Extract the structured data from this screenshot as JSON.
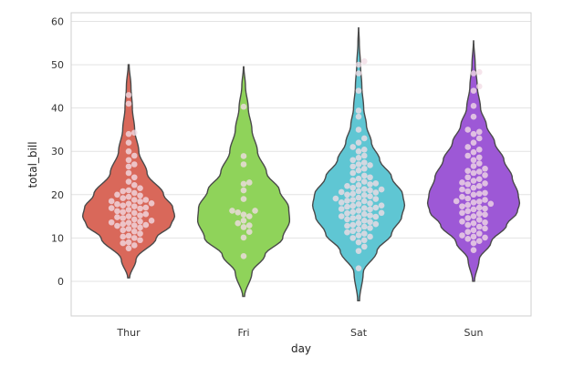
{
  "chart_data": {
    "type": "violin",
    "title": "",
    "xlabel": "day",
    "ylabel": "total_bill",
    "ylim": [
      -8,
      62
    ],
    "yticks": [
      0,
      10,
      20,
      30,
      40,
      50,
      60
    ],
    "grid": true,
    "categories": [
      "Thur",
      "Fri",
      "Sat",
      "Sun"
    ],
    "colors": {
      "Thur": "#d9685a",
      "Fri": "#8fd35a",
      "Sat": "#5fc6d3",
      "Sun": "#9d58d6",
      "points": "#f2dce6",
      "outline": "#4a4a4a"
    },
    "series": [
      {
        "category": "Thur",
        "density_range": [
          0.8,
          50
        ],
        "density_profile": [
          [
            0.8,
            0.02
          ],
          [
            5,
            0.16
          ],
          [
            10,
            0.6
          ],
          [
            13,
            0.92
          ],
          [
            15,
            1.0
          ],
          [
            17,
            0.96
          ],
          [
            20,
            0.76
          ],
          [
            25,
            0.4
          ],
          [
            30,
            0.22
          ],
          [
            35,
            0.13
          ],
          [
            40,
            0.08
          ],
          [
            45,
            0.05
          ],
          [
            50,
            0.01
          ]
        ],
        "points": [
          13,
          13.5,
          13.2,
          12.8,
          14,
          14.8,
          15,
          15.5,
          16.2,
          16.8,
          17,
          17.3,
          17.8,
          18,
          18.4,
          18.8,
          19.2,
          19.8,
          20,
          20.4,
          21,
          21.5,
          22.2,
          23,
          11,
          11.8,
          12.4,
          10.5,
          10,
          9.5,
          9,
          8.8,
          8.3,
          7.6,
          12.1,
          14.3,
          15.2,
          16,
          16.5,
          17.5,
          18.5,
          19.5,
          20.8,
          24,
          25,
          26.5,
          27,
          28,
          29,
          30,
          32,
          34,
          34.3,
          41,
          43,
          11.5,
          12.9,
          13.8,
          14.6,
          15.8,
          16.9,
          17.9,
          18.8,
          13.6,
          10.3
        ]
      },
      {
        "category": "Fri",
        "density_range": [
          -3.5,
          49.5
        ],
        "density_profile": [
          [
            -3.5,
            0.02
          ],
          [
            2,
            0.18
          ],
          [
            6,
            0.46
          ],
          [
            10,
            0.85
          ],
          [
            14,
            1.0
          ],
          [
            17,
            0.98
          ],
          [
            21,
            0.78
          ],
          [
            25,
            0.5
          ],
          [
            30,
            0.3
          ],
          [
            35,
            0.18
          ],
          [
            40,
            0.1
          ],
          [
            45,
            0.04
          ],
          [
            49.5,
            0.005
          ]
        ],
        "points": [
          5.8,
          10.1,
          11.4,
          12.5,
          12.9,
          13.4,
          14,
          15,
          15.4,
          15.9,
          16.3,
          16.3,
          19,
          21,
          22.5,
          22.8,
          27,
          28.9,
          40.3
        ]
      },
      {
        "category": "Sat",
        "density_range": [
          -4.5,
          58.5
        ],
        "density_profile": [
          [
            -4.5,
            0.02
          ],
          [
            2,
            0.1
          ],
          [
            7,
            0.4
          ],
          [
            11,
            0.72
          ],
          [
            15,
            0.94
          ],
          [
            17.5,
            1.0
          ],
          [
            20,
            0.96
          ],
          [
            24,
            0.72
          ],
          [
            28,
            0.46
          ],
          [
            32,
            0.28
          ],
          [
            36,
            0.17
          ],
          [
            40,
            0.11
          ],
          [
            45,
            0.07
          ],
          [
            50,
            0.04
          ],
          [
            55,
            0.015
          ],
          [
            58.5,
            0.003
          ]
        ],
        "points": [
          3,
          7,
          8,
          9,
          9.5,
          10,
          10.3,
          10.6,
          11,
          11.3,
          11.6,
          12,
          12.3,
          12.6,
          13,
          13.2,
          13.4,
          13.7,
          14,
          14.3,
          14.6,
          14.9,
          15,
          15.2,
          15.5,
          15.8,
          16,
          16.3,
          16.6,
          16.9,
          17,
          17.2,
          17.5,
          17.8,
          18,
          18.2,
          18.5,
          18.8,
          19,
          19.3,
          19.6,
          19.9,
          20,
          20.2,
          20.5,
          20.8,
          21,
          21.3,
          21.6,
          22,
          22.2,
          22.6,
          23,
          23.3,
          23.7,
          24,
          24.4,
          25,
          25.6,
          26,
          26.5,
          27,
          27.4,
          28,
          28.5,
          29,
          30,
          31,
          32,
          33,
          35,
          38,
          39.4,
          44,
          48,
          50,
          50.8,
          12.8,
          14.8,
          16.7,
          18.6,
          20.6,
          22.4,
          26.8,
          30.4,
          15.7,
          17.4,
          19.1,
          21.2
        ]
      },
      {
        "category": "Sun",
        "density_range": [
          0,
          55.5
        ],
        "density_profile": [
          [
            0,
            0.02
          ],
          [
            5,
            0.12
          ],
          [
            9,
            0.38
          ],
          [
            13,
            0.72
          ],
          [
            16,
            0.95
          ],
          [
            18,
            1.0
          ],
          [
            20,
            0.97
          ],
          [
            24,
            0.84
          ],
          [
            28,
            0.66
          ],
          [
            32,
            0.46
          ],
          [
            36,
            0.28
          ],
          [
            40,
            0.15
          ],
          [
            45,
            0.08
          ],
          [
            50,
            0.035
          ],
          [
            55.5,
            0.003
          ]
        ],
        "points": [
          7.2,
          8.8,
          9.3,
          9.8,
          10.1,
          10.3,
          10.6,
          11,
          11.4,
          11.8,
          12.2,
          12.6,
          13,
          13.4,
          13.8,
          14.2,
          14.6,
          15,
          15.4,
          15.8,
          16.2,
          16.6,
          17,
          17.3,
          17.6,
          17.9,
          18.2,
          18.5,
          18.8,
          19.1,
          19.5,
          20,
          20.4,
          20.8,
          21.2,
          21.6,
          22,
          22.4,
          22.8,
          23.2,
          23.6,
          24,
          24.5,
          25,
          25.5,
          26,
          26.6,
          27.2,
          28,
          28.6,
          29,
          29.8,
          30.4,
          31,
          32,
          33,
          34,
          34.5,
          35,
          38,
          40.5,
          44,
          45,
          48,
          48.3,
          16.8,
          18.4,
          20.2,
          22.6,
          25.3,
          15.6,
          13.6
        ]
      }
    ]
  }
}
